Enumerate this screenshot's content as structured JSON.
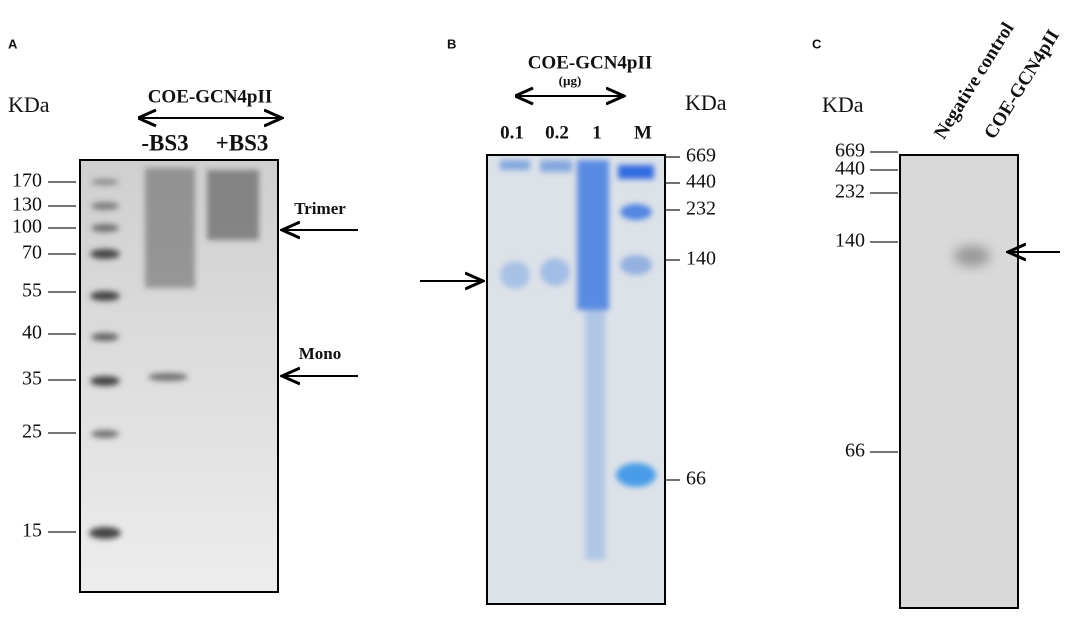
{
  "panels": [
    {
      "label": "A",
      "unit": "KDa",
      "sample": "COE-GCN4pII",
      "lanes": [
        "-BS3",
        "+BS3"
      ],
      "markers": [
        "170",
        "130",
        "100",
        "70",
        "55",
        "40",
        "35",
        "25",
        "15"
      ],
      "annotations": [
        "Trimer",
        "Mono"
      ]
    },
    {
      "label": "B",
      "sample": "COE-GCN4pII",
      "sample_unit": "(µg)",
      "unit": "KDa",
      "lanes": [
        "0.1",
        "0.2",
        "1",
        "M"
      ],
      "markers": [
        "669",
        "440",
        "232",
        "140",
        "66"
      ]
    },
    {
      "label": "C",
      "unit": "KDa",
      "lanes": [
        "Negative control",
        "COE-GCN4pII"
      ],
      "markers": [
        "669",
        "440",
        "232",
        "140",
        "66"
      ]
    }
  ]
}
